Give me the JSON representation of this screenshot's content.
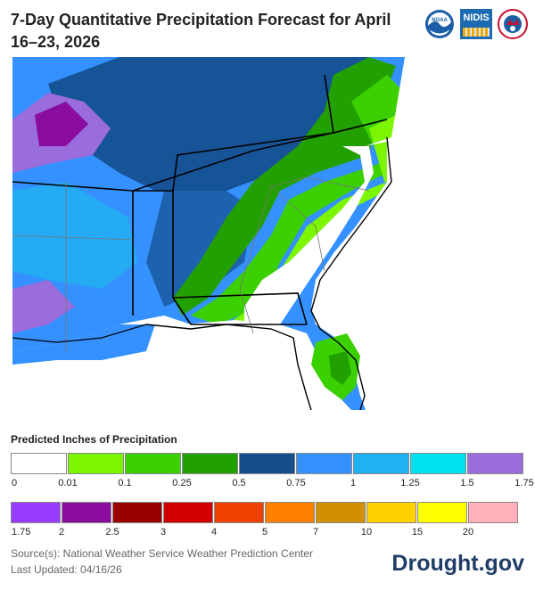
{
  "title": "7-Day Quantitative Precipitation Forecast for April 16–23, 2026",
  "logos": {
    "noaa": "NOAA",
    "nidis": "NIDIS",
    "nws": "NATIONAL WEATHER SERVICE"
  },
  "legend": {
    "title": "Predicted Inches of Precipitation",
    "row1_colors": [
      "#ffffff",
      "#7cf500",
      "#3bd000",
      "#22a000",
      "#144e8c",
      "#3591ff",
      "#20b2f0",
      "#00e1f0",
      "#9a6cdc"
    ],
    "row1_labels": [
      "0",
      "0.01",
      "0.1",
      "0.25",
      "0.5",
      "0.75",
      "1",
      "1.25",
      "1.5",
      "1.75"
    ],
    "row2_colors": [
      "#9a3cff",
      "#8a0ca0",
      "#9a0000",
      "#d00000",
      "#f04000",
      "#ff8000",
      "#d09000",
      "#ffd000",
      "#ffff00",
      "#ffb0b8"
    ],
    "row2_labels": [
      "1.75",
      "2",
      "2.5",
      "3",
      "4",
      "5",
      "7",
      "10",
      "15",
      "20"
    ]
  },
  "source": "Source(s): National Weather Service Weather Prediction Center",
  "updated": "Last Updated: 04/16/26",
  "brand": "Drought.gov",
  "colors": {
    "ocean": "#ffffff",
    "state_border": "#000000",
    "county_border": "#777777"
  }
}
